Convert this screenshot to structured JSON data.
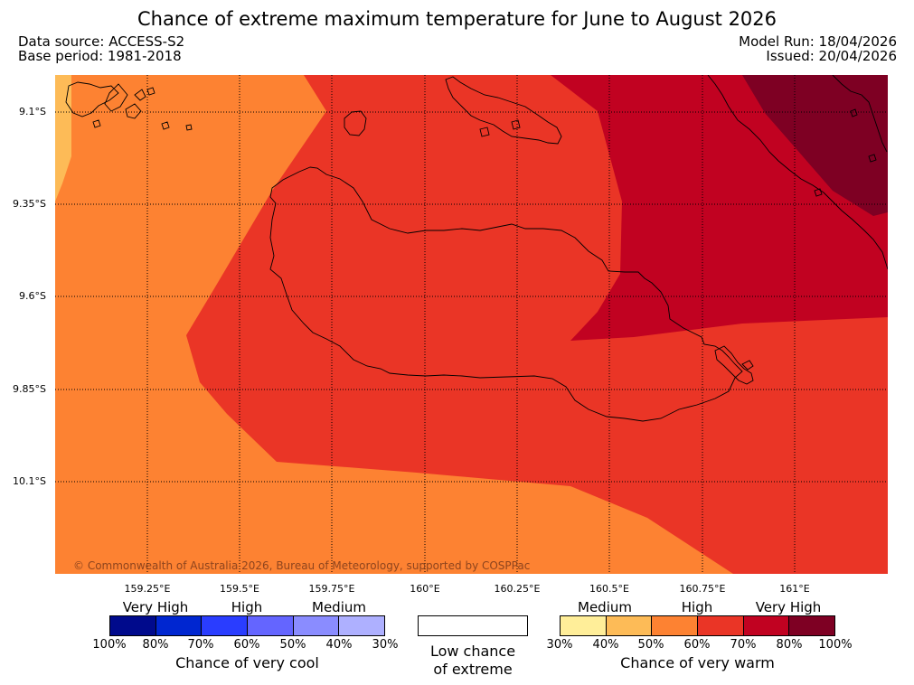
{
  "title": "Chance of extreme maximum temperature for June to August 2026",
  "data_source": "Data source: ACCESS-S2",
  "base_period": "Base period: 1981-2018",
  "model_run": "Model Run: 18/04/2026",
  "issued": "Issued: 20/04/2026",
  "copyright": "© Commonwealth of Australia 2026, Bureau of Meteorology, supported by COSPPac",
  "lat_labels": [
    "9.1°S",
    "9.35°S",
    "9.6°S",
    "9.85°S",
    "10.1°S"
  ],
  "lon_labels": [
    "159.25°E",
    "159.5°E",
    "159.75°E",
    "160°E",
    "160.25°E",
    "160.5°E",
    "160.75°E",
    "161°E"
  ],
  "legend": {
    "cool": {
      "categories": [
        "Very High",
        "High",
        "Medium"
      ],
      "colors": [
        "#000a8c",
        "#0026d0",
        "#2a3dff",
        "#6465ff",
        "#8a8cff",
        "#aeb0ff"
      ],
      "ticks": [
        "100%",
        "80%",
        "70%",
        "60%",
        "50%",
        "40%",
        "30%"
      ],
      "caption": "Chance of very cool"
    },
    "low": {
      "caption_line1": "Low chance",
      "caption_line2": "of extreme"
    },
    "warm": {
      "categories": [
        "Medium",
        "High",
        "Very High"
      ],
      "colors": [
        "#ffee99",
        "#fdbb57",
        "#fd8232",
        "#ea3526",
        "#c10221",
        "#7e0023"
      ],
      "ticks": [
        "30%",
        "40%",
        "50%",
        "60%",
        "70%",
        "80%",
        "100%"
      ],
      "caption": "Chance of very warm"
    }
  }
}
